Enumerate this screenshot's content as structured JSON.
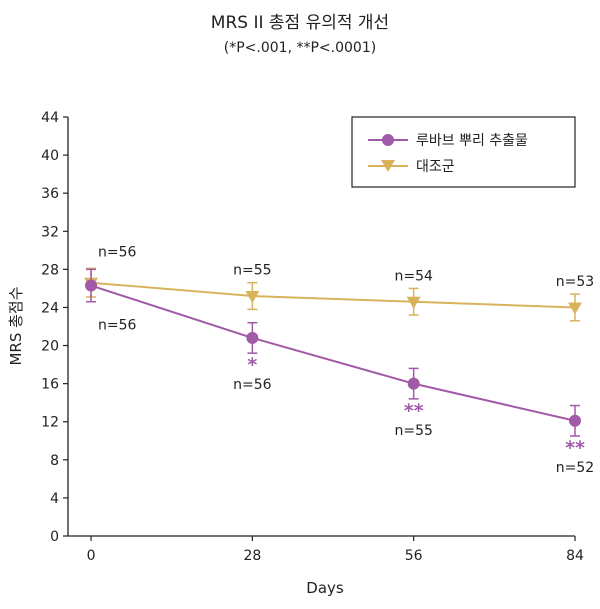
{
  "chart_data": {
    "type": "line",
    "title": "MRS II 총점 유의적 개선",
    "subtitle": "(*P<.001, **P<.0001)",
    "xlabel": "Days",
    "ylabel": "MRS 총점수",
    "x": [
      0,
      28,
      56,
      84
    ],
    "x_ticks": [
      "0",
      "28",
      "56",
      "84"
    ],
    "y_ticks": [
      "0",
      "4",
      "8",
      "12",
      "16",
      "20",
      "24",
      "28",
      "32",
      "36",
      "40",
      "44"
    ],
    "ylim": [
      0,
      44
    ],
    "legend_position": "top-right",
    "series": [
      {
        "name": "루바브 뿌리 추출물",
        "marker": "circle",
        "color": "#a05aa8",
        "values": [
          26.3,
          20.8,
          16.0,
          12.1
        ],
        "error": [
          1.7,
          1.6,
          1.6,
          1.6
        ],
        "n_labels": [
          "n=56",
          "n=56",
          "n=55",
          "n=52"
        ],
        "significance": [
          "",
          "*",
          "**",
          "**"
        ]
      },
      {
        "name": "대조군",
        "marker": "triangle-down",
        "color": "#d9b35a",
        "values": [
          26.6,
          25.2,
          24.6,
          24.0
        ],
        "error": [
          1.5,
          1.4,
          1.4,
          1.4
        ],
        "n_labels": [
          "n=56",
          "n=55",
          "n=54",
          "n=53"
        ],
        "significance": [
          "",
          "",
          "",
          ""
        ]
      }
    ]
  }
}
